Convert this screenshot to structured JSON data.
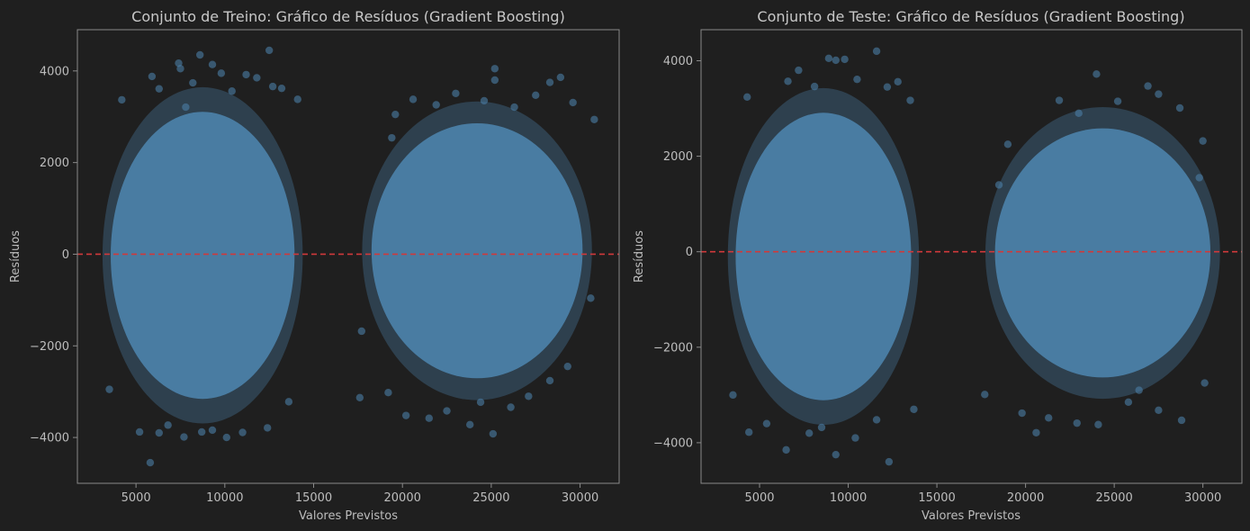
{
  "colors": {
    "background": "#1f1f1f",
    "points": "#4b7fa6",
    "zero_line": "#d0393b",
    "text": "#c8c8c8"
  },
  "chart_data": [
    {
      "type": "scatter",
      "title": "Conjunto de Treino: Gráfico de Resíduos (Gradient Boosting)",
      "xlabel": "Valores Previstos",
      "ylabel": "Resíduos",
      "xlim": [
        1700,
        32200
      ],
      "ylim": [
        -5000,
        4900
      ],
      "xticks": [
        5000,
        10000,
        15000,
        20000,
        25000,
        30000
      ],
      "xtick_labels": [
        "5000",
        "10000",
        "15000",
        "20000",
        "25000",
        "30000"
      ],
      "yticks": [
        -4000,
        -2000,
        0,
        2000,
        4000
      ],
      "ytick_labels": [
        "−4000",
        "−2000",
        "0",
        "2000",
        "4000"
      ],
      "reference_line": {
        "y": 0,
        "style": "dashed",
        "color": "#d0393b"
      },
      "clusters": [
        {
          "x_range": [
            3000,
            14500
          ],
          "y_range": [
            -4500,
            4450
          ]
        },
        {
          "x_range": [
            17600,
            30800
          ],
          "y_range": [
            -3900,
            4050
          ]
        }
      ],
      "points": [
        [
          12500,
          4450
        ],
        [
          8600,
          4350
        ],
        [
          7400,
          4170
        ],
        [
          9300,
          4140
        ],
        [
          7500,
          4050
        ],
        [
          9800,
          3950
        ],
        [
          11800,
          3850
        ],
        [
          8200,
          3740
        ],
        [
          6300,
          3610
        ],
        [
          11200,
          3920
        ],
        [
          13200,
          3620
        ],
        [
          10400,
          3560
        ],
        [
          5900,
          3880
        ],
        [
          7800,
          3210
        ],
        [
          4200,
          3370
        ],
        [
          14100,
          3380
        ],
        [
          12700,
          3660
        ],
        [
          25200,
          4050
        ],
        [
          28900,
          3860
        ],
        [
          25200,
          3800
        ],
        [
          23000,
          3510
        ],
        [
          27500,
          3470
        ],
        [
          29600,
          3310
        ],
        [
          20600,
          3380
        ],
        [
          19600,
          3050
        ],
        [
          24600,
          3350
        ],
        [
          26300,
          3210
        ],
        [
          30800,
          2940
        ],
        [
          19400,
          2540
        ],
        [
          21900,
          3260
        ],
        [
          28300,
          3750
        ],
        [
          5800,
          -4550
        ],
        [
          6300,
          -3900
        ],
        [
          7700,
          -3990
        ],
        [
          10100,
          -4000
        ],
        [
          11000,
          -3890
        ],
        [
          8700,
          -3880
        ],
        [
          5200,
          -3880
        ],
        [
          9300,
          -3840
        ],
        [
          12400,
          -3790
        ],
        [
          6800,
          -3730
        ],
        [
          3500,
          -2950
        ],
        [
          13600,
          -3220
        ],
        [
          25100,
          -3920
        ],
        [
          23800,
          -3720
        ],
        [
          20200,
          -3520
        ],
        [
          17600,
          -3130
        ],
        [
          21500,
          -3580
        ],
        [
          27100,
          -3100
        ],
        [
          22500,
          -3420
        ],
        [
          26100,
          -3340
        ],
        [
          29300,
          -2450
        ],
        [
          24400,
          -3230
        ],
        [
          19200,
          -3020
        ],
        [
          30600,
          -960
        ],
        [
          17700,
          -1680
        ],
        [
          28300,
          -2760
        ]
      ]
    },
    {
      "type": "scatter",
      "title": "Conjunto de Teste: Gráfico de Resíduos (Gradient Boosting)",
      "xlabel": "Valores Previstos",
      "ylabel": "Resíduos",
      "xlim": [
        1700,
        32200
      ],
      "ylim": [
        -4850,
        4650
      ],
      "xticks": [
        5000,
        10000,
        15000,
        20000,
        25000,
        30000
      ],
      "xtick_labels": [
        "5000",
        "10000",
        "15000",
        "20000",
        "25000",
        "30000"
      ],
      "yticks": [
        -4000,
        -2000,
        0,
        2000,
        4000
      ],
      "ytick_labels": [
        "−4000",
        "−2000",
        "0",
        "2000",
        "4000"
      ],
      "reference_line": {
        "y": 0,
        "style": "dashed",
        "color": "#d0393b"
      },
      "clusters": [
        {
          "x_range": [
            3100,
            14100
          ],
          "y_range": [
            -4400,
            4200
          ]
        },
        {
          "x_range": [
            17600,
            31100
          ],
          "y_range": [
            -3750,
            3700
          ]
        }
      ],
      "points": [
        [
          11600,
          4200
        ],
        [
          8900,
          4050
        ],
        [
          9800,
          4030
        ],
        [
          9300,
          4010
        ],
        [
          7200,
          3800
        ],
        [
          10500,
          3610
        ],
        [
          12200,
          3450
        ],
        [
          6600,
          3570
        ],
        [
          8100,
          3460
        ],
        [
          4300,
          3240
        ],
        [
          13500,
          3170
        ],
        [
          12800,
          3560
        ],
        [
          24000,
          3720
        ],
        [
          26900,
          3470
        ],
        [
          21900,
          3170
        ],
        [
          27500,
          3300
        ],
        [
          28700,
          3010
        ],
        [
          23000,
          2900
        ],
        [
          30000,
          2320
        ],
        [
          19000,
          2250
        ],
        [
          29800,
          1550
        ],
        [
          18500,
          1400
        ],
        [
          25200,
          3150
        ],
        [
          9300,
          -4250
        ],
        [
          12300,
          -4400
        ],
        [
          6500,
          -4150
        ],
        [
          10400,
          -3900
        ],
        [
          7800,
          -3800
        ],
        [
          4400,
          -3780
        ],
        [
          5400,
          -3600
        ],
        [
          11600,
          -3520
        ],
        [
          13700,
          -3300
        ],
        [
          8500,
          -3680
        ],
        [
          3500,
          -3000
        ],
        [
          24100,
          -3620
        ],
        [
          22900,
          -3590
        ],
        [
          21300,
          -3480
        ],
        [
          20600,
          -3790
        ],
        [
          25800,
          -3150
        ],
        [
          28800,
          -3530
        ],
        [
          27500,
          -3320
        ],
        [
          17700,
          -2990
        ],
        [
          19800,
          -3380
        ],
        [
          30100,
          -2750
        ],
        [
          26400,
          -2900
        ]
      ]
    }
  ]
}
